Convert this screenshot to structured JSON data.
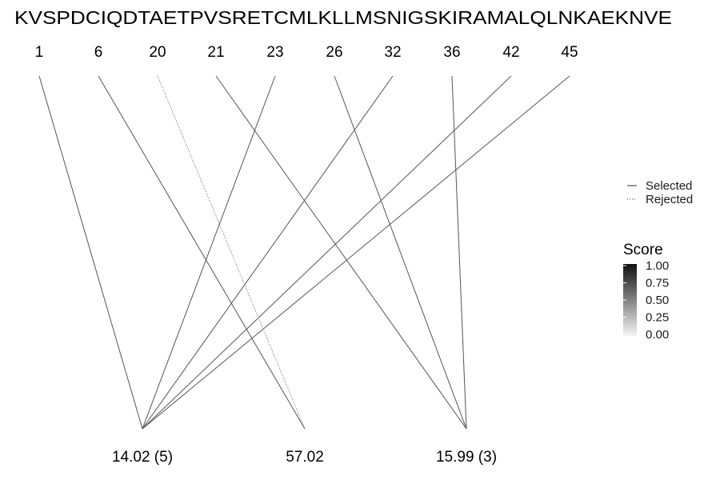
{
  "sequence": "KVSPDCIQDTAETPVSRETCMLKLLMSNIGSKIRAMALQLNKAEKNVE",
  "positions": [
    "1",
    "6",
    "20",
    "21",
    "23",
    "26",
    "32",
    "36",
    "42",
    "45"
  ],
  "masses": [
    "14.02 (5)",
    "57.02",
    "15.99 (3)"
  ],
  "links": [
    {
      "from": 0,
      "to": 0,
      "status": "Selected",
      "score": 0.7
    },
    {
      "from": 1,
      "to": 1,
      "status": "Selected",
      "score": 0.7
    },
    {
      "from": 2,
      "to": 1,
      "status": "Rejected",
      "score": 0.7
    },
    {
      "from": 3,
      "to": 2,
      "status": "Selected",
      "score": 0.7
    },
    {
      "from": 4,
      "to": 0,
      "status": "Selected",
      "score": 0.7
    },
    {
      "from": 5,
      "to": 2,
      "status": "Selected",
      "score": 0.7
    },
    {
      "from": 6,
      "to": 0,
      "status": "Selected",
      "score": 0.7
    },
    {
      "from": 7,
      "to": 2,
      "status": "Selected",
      "score": 0.7
    },
    {
      "from": 8,
      "to": 0,
      "status": "Selected",
      "score": 0.7
    },
    {
      "from": 9,
      "to": 0,
      "status": "Selected",
      "score": 0.7
    }
  ],
  "legend": {
    "linetype_items": [
      "Selected",
      "Rejected"
    ],
    "score_title": "Score",
    "score_ticks": [
      "1.00",
      "0.75",
      "0.50",
      "0.25",
      "0.00"
    ]
  },
  "colors": {
    "line": "#777777",
    "score_high": "#111111",
    "score_low": "#f5f5f5"
  }
}
